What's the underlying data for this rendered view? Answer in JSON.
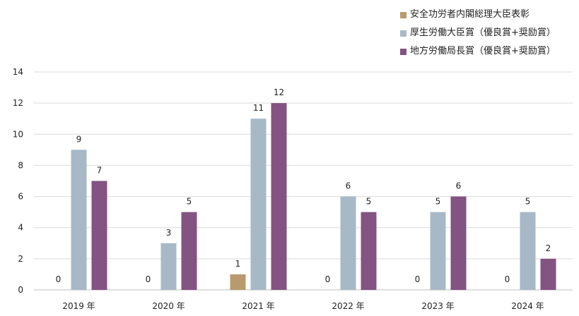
{
  "chart_data": {
    "type": "bar",
    "categories": [
      "2019 年",
      "2020 年",
      "2021 年",
      "2022 年",
      "2023 年",
      "2024 年"
    ],
    "series": [
      {
        "name": "安全功労者内閣総理大臣表彰",
        "color": "#b89a6e",
        "values": [
          0,
          0,
          1,
          0,
          0,
          0
        ]
      },
      {
        "name": "厚生労働大臣賞（優良賞+奨励賞）",
        "color": "#a7b9c7",
        "values": [
          9,
          3,
          11,
          6,
          5,
          5
        ]
      },
      {
        "name": "地方労働局長賞（優良賞+奨励賞）",
        "color": "#835382",
        "values": [
          7,
          5,
          12,
          5,
          6,
          2
        ]
      }
    ],
    "ylim": [
      0,
      14
    ],
    "yticks": [
      0,
      2,
      4,
      6,
      8,
      10,
      12,
      14
    ],
    "xlabel": "",
    "ylabel": "",
    "grid": true,
    "legend": "top-right"
  }
}
